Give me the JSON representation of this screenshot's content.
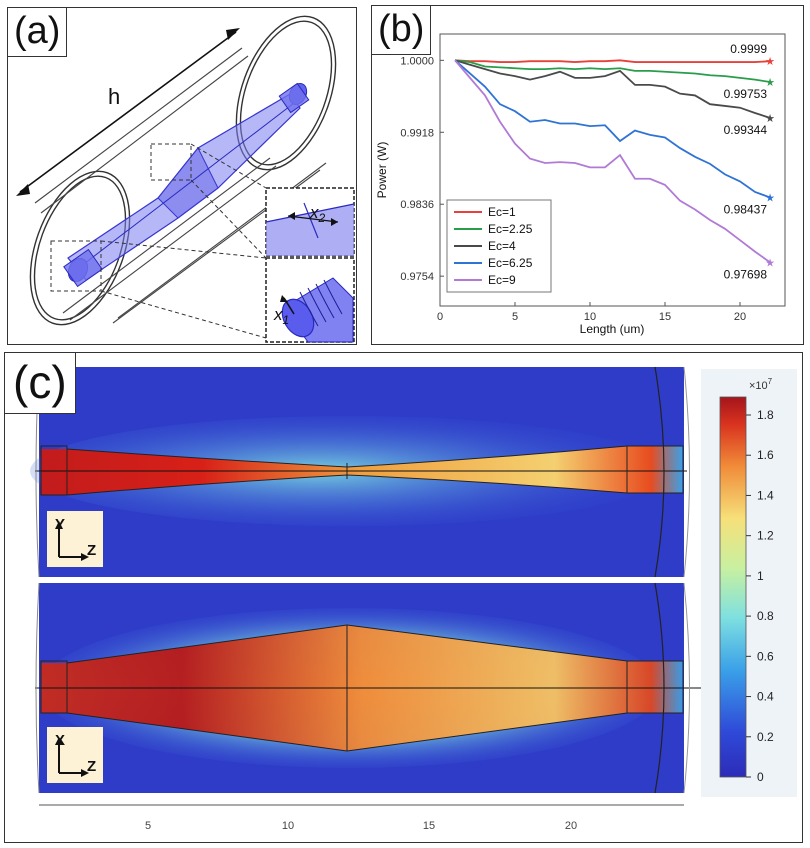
{
  "panel_a": {
    "label": "(a)",
    "h_label": "h",
    "x1_label": "x",
    "x1_sub": "1",
    "x2_label": "x",
    "x2_sub": "2"
  },
  "panel_b": {
    "label": "(b)",
    "chart_data": {
      "type": "line",
      "xlabel": "Length (um)",
      "ylabel": "Power (W)",
      "xlim": [
        0,
        23
      ],
      "ylim": [
        0.972,
        1.003
      ],
      "xticks": [
        0,
        5,
        10,
        15,
        20
      ],
      "yticks": [
        1.0,
        0.9918,
        0.9836,
        0.9754
      ],
      "ytick_labels": [
        "1.0000",
        "0.9918",
        "0.9836",
        "0.9754"
      ],
      "x": [
        1,
        2,
        3,
        4,
        5,
        6,
        7,
        8,
        9,
        10,
        11,
        12,
        13,
        14,
        15,
        16,
        17,
        18,
        19,
        20,
        21,
        22
      ],
      "series": [
        {
          "name": "Ec=1",
          "color": "#e8413a",
          "end_label": "0.9999",
          "values": [
            1.0,
            0.9999,
            0.9999,
            0.9998,
            0.9998,
            0.9999,
            0.9999,
            0.9999,
            0.9998,
            0.9999,
            0.9999,
            1.0,
            0.9998,
            0.9998,
            0.9998,
            0.9998,
            0.9998,
            0.9998,
            0.9998,
            0.9998,
            0.9998,
            0.9999
          ]
        },
        {
          "name": "Ec=2.25",
          "color": "#2a9d4a",
          "end_label": "0.99753",
          "values": [
            1.0,
            0.9998,
            0.9993,
            0.9992,
            0.9991,
            0.999,
            0.999,
            0.9991,
            0.999,
            0.9991,
            0.999,
            0.9991,
            0.9988,
            0.9988,
            0.9987,
            0.9986,
            0.9985,
            0.9983,
            0.9982,
            0.998,
            0.9978,
            0.99753
          ]
        },
        {
          "name": "Ec=4",
          "color": "#4a4a4a",
          "end_label": "0.99344",
          "values": [
            1.0,
            0.9995,
            0.999,
            0.9985,
            0.9982,
            0.9978,
            0.9982,
            0.9987,
            0.998,
            0.998,
            0.9982,
            0.9988,
            0.9972,
            0.9972,
            0.997,
            0.9962,
            0.996,
            0.995,
            0.9948,
            0.9946,
            0.994,
            0.99344
          ]
        },
        {
          "name": "Ec=6.25",
          "color": "#2f73d4",
          "end_label": "0.98437",
          "values": [
            1.0,
            0.9985,
            0.997,
            0.995,
            0.9942,
            0.993,
            0.9932,
            0.9928,
            0.9928,
            0.9925,
            0.9926,
            0.9908,
            0.992,
            0.9915,
            0.9912,
            0.99,
            0.989,
            0.9882,
            0.987,
            0.9862,
            0.985,
            0.98437
          ]
        },
        {
          "name": "Ec=9",
          "color": "#b07ad6",
          "end_label": "0.97698",
          "values": [
            1.0,
            0.998,
            0.996,
            0.993,
            0.9905,
            0.9888,
            0.9883,
            0.9884,
            0.9883,
            0.9878,
            0.9878,
            0.9892,
            0.9865,
            0.9865,
            0.9858,
            0.984,
            0.983,
            0.9818,
            0.9808,
            0.9795,
            0.9782,
            0.97698
          ]
        }
      ]
    }
  },
  "panel_c": {
    "label": "(c)",
    "colorbar": {
      "exponent_label": "×10",
      "exponent_power": "7",
      "ticks": [
        "1.8",
        "1.6",
        "1.4",
        "1.2",
        "1",
        "0.8",
        "0.6",
        "0.4",
        "0.2",
        "0"
      ]
    },
    "top_axes": {
      "vertical": "Y",
      "horizontal": "Z"
    },
    "bottom_axes": {
      "vertical": "X",
      "horizontal": "Z"
    },
    "length_ticks": [
      "5",
      "10",
      "15",
      "20"
    ]
  }
}
